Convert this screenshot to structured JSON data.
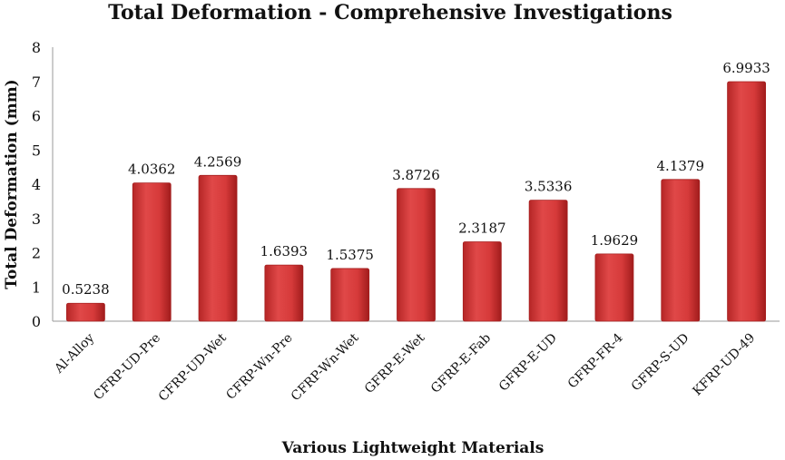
{
  "chart_data": {
    "type": "bar",
    "title": "Total Deformation - Comprehensive Investigations",
    "xlabel": "Various Lightweight Materials",
    "ylabel": "Total Deformation (mm)",
    "ylim": [
      0,
      8
    ],
    "yticks": [
      0,
      1,
      2,
      3,
      4,
      5,
      6,
      7,
      8
    ],
    "categories": [
      "Al-Alloy",
      "CFRP-UD-Pre",
      "CFRP-UD-Wet",
      "CFRP-Wn-Pre",
      "CFRP-Wn-Wet",
      "GFRP-E-Wet",
      "GFRP-E-Fab",
      "GFRP-E-UD",
      "GFRP-FR-4",
      "GFRP-S-UD",
      "KFRP-UD-49"
    ],
    "values": [
      0.5238,
      4.0362,
      4.2569,
      1.6393,
      1.5375,
      3.8726,
      2.3187,
      3.5336,
      1.9629,
      4.1379,
      6.9933
    ],
    "data_labels": [
      "0.5238",
      "4.0362",
      "4.2569",
      "1.6393",
      "1.5375",
      "3.8726",
      "2.3187",
      "3.5336",
      "1.9629",
      "4.1379",
      "6.9933"
    ],
    "grid": false,
    "legend": "none",
    "bar_color": "#d43a3a",
    "bar_dark": "#a51f1f"
  }
}
